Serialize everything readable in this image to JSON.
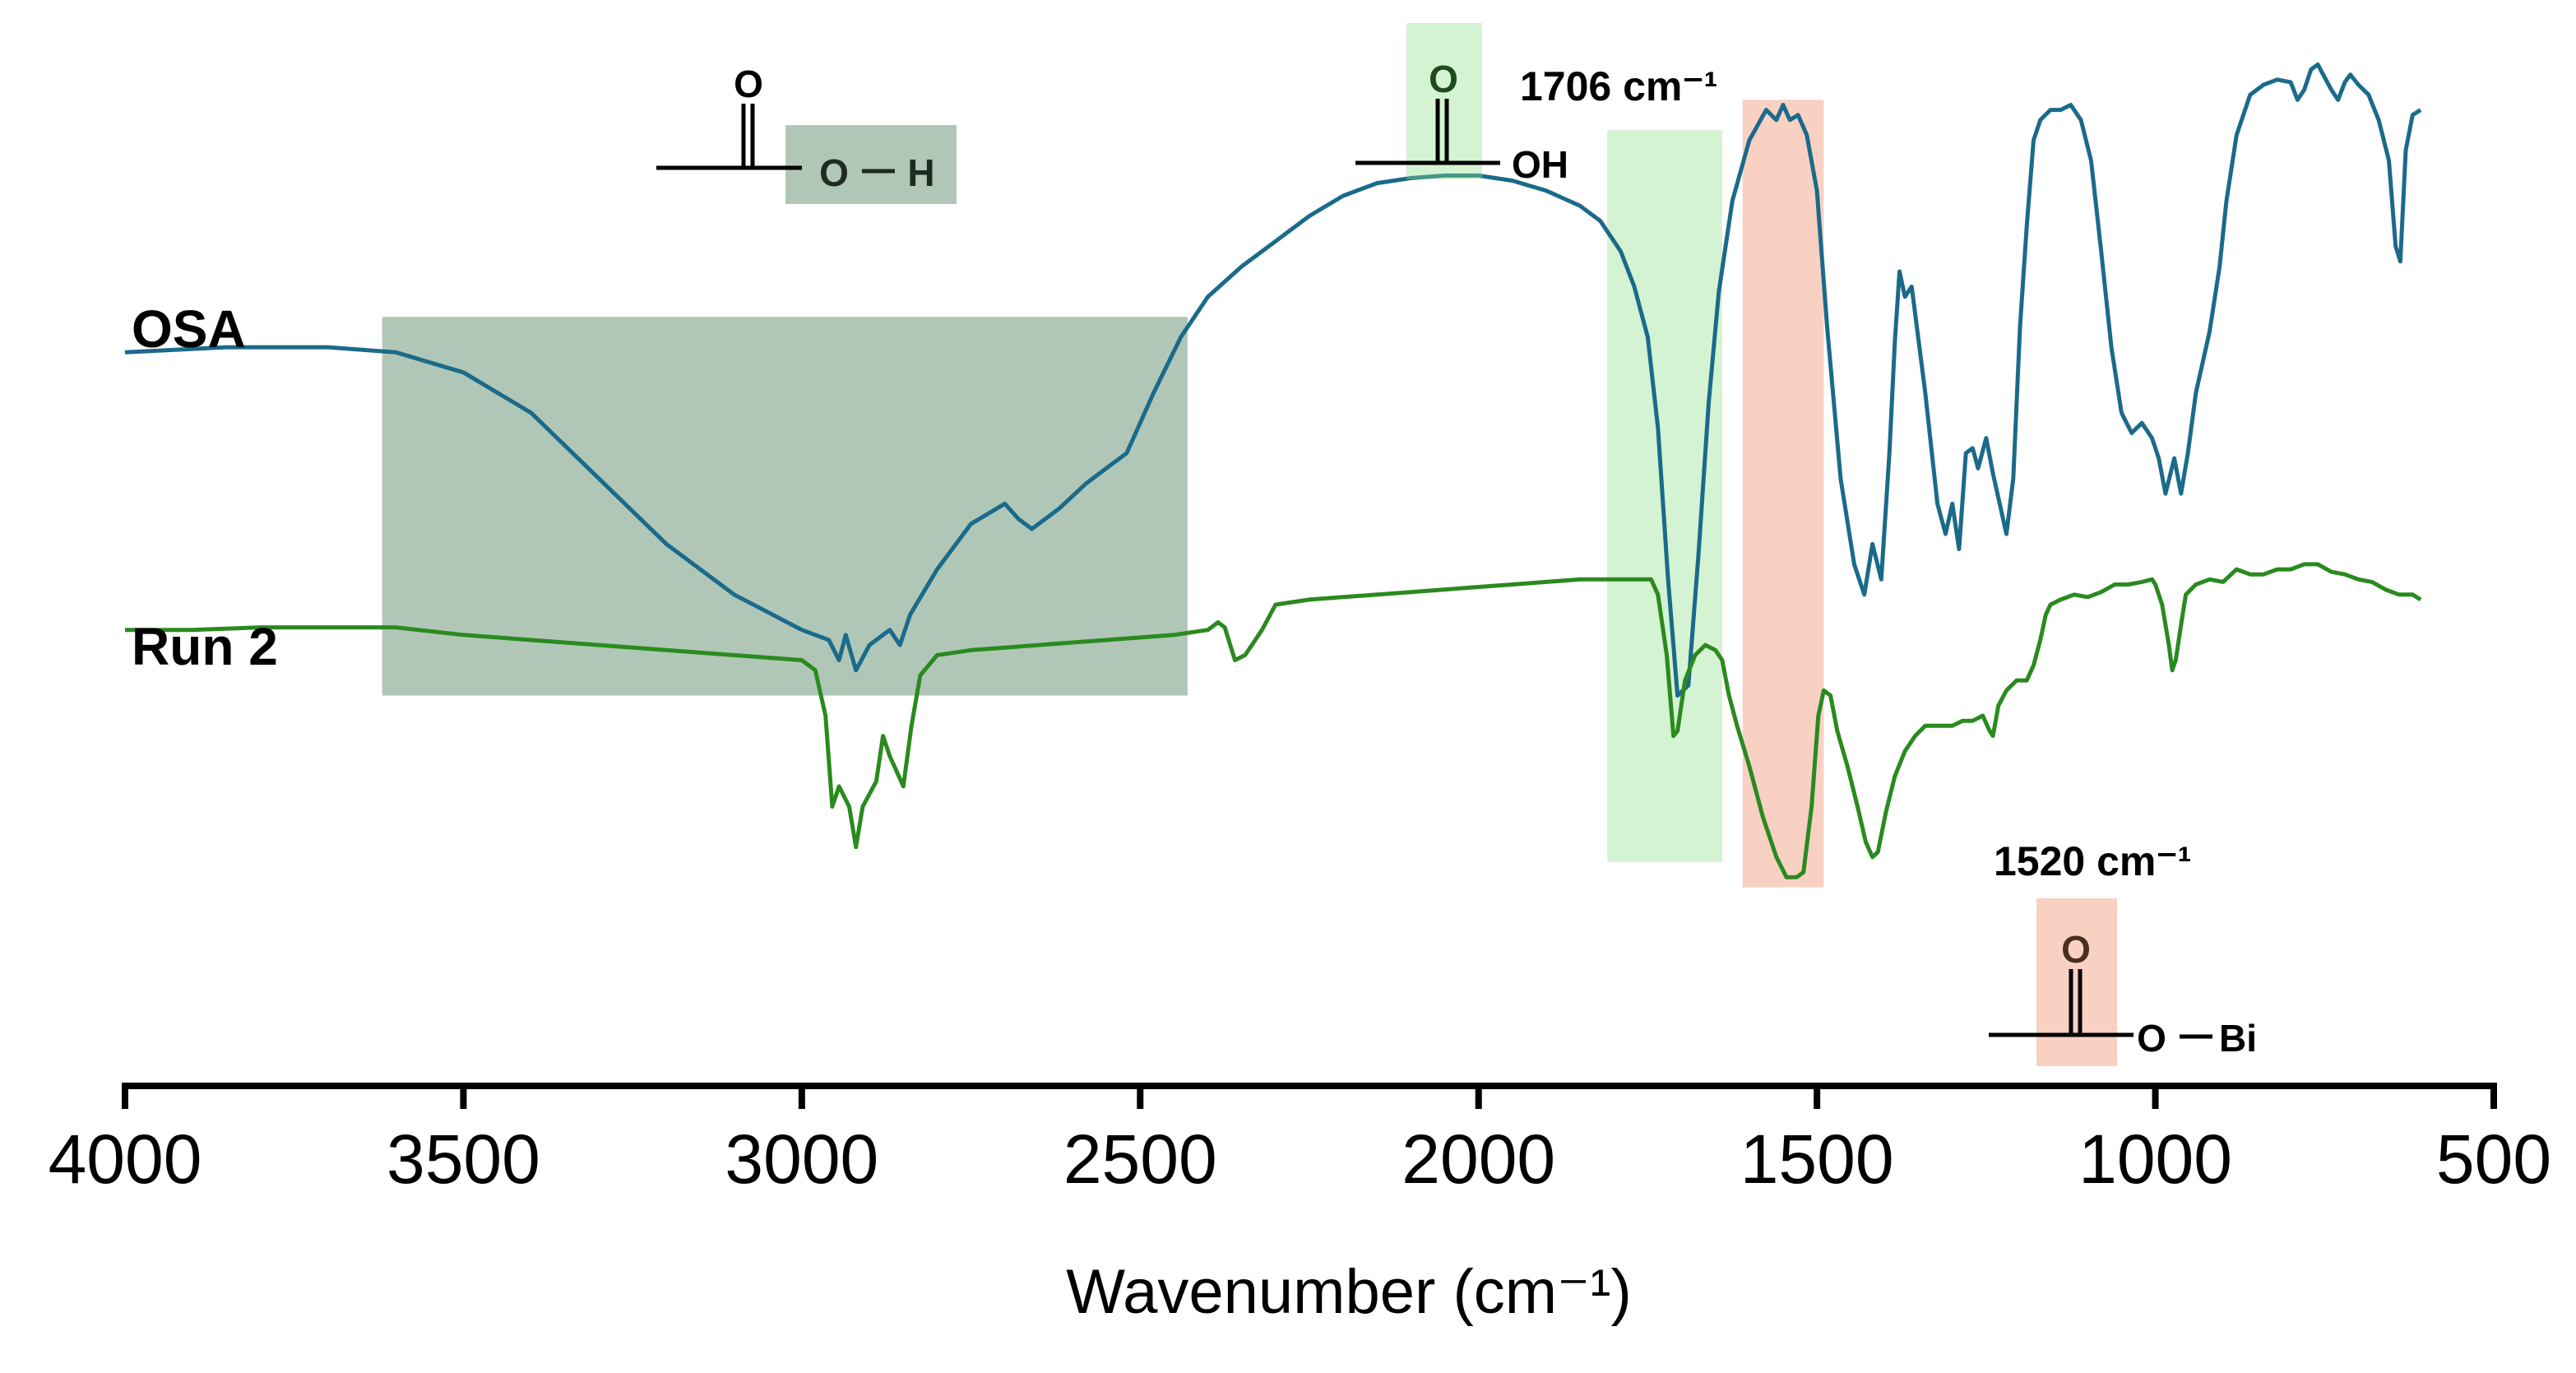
{
  "chart_data": {
    "type": "line",
    "title": "",
    "xlabel": "Wavenumber (cm⁻¹)",
    "ylabel": "",
    "xlim": [
      4000,
      500
    ],
    "x_inverted": true,
    "ylim": [
      -1.45,
      0.6
    ],
    "grid": false,
    "xticks": [
      4000,
      3500,
      3000,
      2500,
      2000,
      1500,
      1000,
      500
    ],
    "xtick_labels": [
      "4000",
      "3500",
      "3000",
      "2500",
      "2000",
      "1500",
      "1000",
      "500"
    ],
    "series": [
      {
        "name": "OSA",
        "label": "OSA",
        "color": "#1b6a8a",
        "points": [
          [
            4000,
            0
          ],
          [
            3850,
            0.01
          ],
          [
            3700,
            0.01
          ],
          [
            3600,
            0
          ],
          [
            3500,
            -0.04
          ],
          [
            3400,
            -0.12
          ],
          [
            3300,
            -0.25
          ],
          [
            3200,
            -0.38
          ],
          [
            3100,
            -0.48
          ],
          [
            3000,
            -0.55
          ],
          [
            2960,
            -0.57
          ],
          [
            2945,
            -0.61
          ],
          [
            2935,
            -0.56
          ],
          [
            2920,
            -0.63
          ],
          [
            2900,
            -0.58
          ],
          [
            2870,
            -0.55
          ],
          [
            2855,
            -0.58
          ],
          [
            2840,
            -0.52
          ],
          [
            2800,
            -0.43
          ],
          [
            2750,
            -0.34
          ],
          [
            2700,
            -0.3
          ],
          [
            2680,
            -0.33
          ],
          [
            2660,
            -0.35
          ],
          [
            2620,
            -0.31
          ],
          [
            2580,
            -0.26
          ],
          [
            2550,
            -0.23
          ],
          [
            2520,
            -0.2
          ],
          [
            2480,
            -0.08
          ],
          [
            2440,
            0.03
          ],
          [
            2400,
            0.11
          ],
          [
            2350,
            0.17
          ],
          [
            2300,
            0.22
          ],
          [
            2250,
            0.27
          ],
          [
            2200,
            0.31
          ],
          [
            2150,
            0.335
          ],
          [
            2100,
            0.345
          ],
          [
            2050,
            0.35
          ],
          [
            2000,
            0.35
          ],
          [
            1950,
            0.34
          ],
          [
            1900,
            0.32
          ],
          [
            1850,
            0.29
          ],
          [
            1820,
            0.26
          ],
          [
            1790,
            0.2
          ],
          [
            1770,
            0.13
          ],
          [
            1750,
            0.03
          ],
          [
            1735,
            -0.15
          ],
          [
            1720,
            -0.45
          ],
          [
            1706,
            -0.68
          ],
          [
            1690,
            -0.66
          ],
          [
            1675,
            -0.4
          ],
          [
            1660,
            -0.1
          ],
          [
            1645,
            0.12
          ],
          [
            1625,
            0.3
          ],
          [
            1600,
            0.42
          ],
          [
            1575,
            0.48
          ],
          [
            1560,
            0.46
          ],
          [
            1550,
            0.49
          ],
          [
            1540,
            0.46
          ],
          [
            1528,
            0.47
          ],
          [
            1515,
            0.43
          ],
          [
            1500,
            0.32
          ],
          [
            1485,
            0.05
          ],
          [
            1465,
            -0.25
          ],
          [
            1445,
            -0.42
          ],
          [
            1430,
            -0.48
          ],
          [
            1418,
            -0.38
          ],
          [
            1405,
            -0.45
          ],
          [
            1393,
            -0.2
          ],
          [
            1385,
            0.02
          ],
          [
            1378,
            0.16
          ],
          [
            1370,
            0.11
          ],
          [
            1360,
            0.13
          ],
          [
            1340,
            -0.08
          ],
          [
            1322,
            -0.3
          ],
          [
            1310,
            -0.36
          ],
          [
            1300,
            -0.3
          ],
          [
            1290,
            -0.39
          ],
          [
            1280,
            -0.2
          ],
          [
            1270,
            -0.19
          ],
          [
            1262,
            -0.23
          ],
          [
            1250,
            -0.17
          ],
          [
            1240,
            -0.24
          ],
          [
            1230,
            -0.3
          ],
          [
            1220,
            -0.36
          ],
          [
            1210,
            -0.25
          ],
          [
            1200,
            0.05
          ],
          [
            1190,
            0.25
          ],
          [
            1180,
            0.42
          ],
          [
            1170,
            0.46
          ],
          [
            1155,
            0.48
          ],
          [
            1140,
            0.48
          ],
          [
            1125,
            0.49
          ],
          [
            1110,
            0.46
          ],
          [
            1095,
            0.38
          ],
          [
            1080,
            0.2
          ],
          [
            1065,
            0.01
          ],
          [
            1050,
            -0.12
          ],
          [
            1035,
            -0.16
          ],
          [
            1020,
            -0.14
          ],
          [
            1005,
            -0.17
          ],
          [
            995,
            -0.21
          ],
          [
            985,
            -0.28
          ],
          [
            972,
            -0.21
          ],
          [
            962,
            -0.28
          ],
          [
            952,
            -0.2
          ],
          [
            940,
            -0.08
          ],
          [
            920,
            0.04
          ],
          [
            905,
            0.17
          ],
          [
            895,
            0.3
          ],
          [
            880,
            0.43
          ],
          [
            860,
            0.51
          ],
          [
            840,
            0.53
          ],
          [
            820,
            0.54
          ],
          [
            800,
            0.535
          ],
          [
            790,
            0.5
          ],
          [
            780,
            0.52
          ],
          [
            770,
            0.56
          ],
          [
            760,
            0.57
          ],
          [
            750,
            0.545
          ],
          [
            740,
            0.52
          ],
          [
            730,
            0.5
          ],
          [
            720,
            0.535
          ],
          [
            712,
            0.55
          ],
          [
            700,
            0.53
          ],
          [
            685,
            0.51
          ],
          [
            670,
            0.46
          ],
          [
            655,
            0.38
          ],
          [
            645,
            0.21
          ],
          [
            638,
            0.18
          ],
          [
            630,
            0.4
          ],
          [
            620,
            0.47
          ],
          [
            608,
            0.48
          ]
        ]
      },
      {
        "name": "Run 2",
        "label": "Run 2",
        "color": "#2a8a1f",
        "points": [
          [
            4000,
            -0.55
          ],
          [
            3900,
            -0.55
          ],
          [
            3800,
            -0.545
          ],
          [
            3700,
            -0.545
          ],
          [
            3600,
            -0.545
          ],
          [
            3500,
            -0.56
          ],
          [
            3400,
            -0.57
          ],
          [
            3300,
            -0.58
          ],
          [
            3200,
            -0.59
          ],
          [
            3100,
            -0.6
          ],
          [
            3000,
            -0.61
          ],
          [
            2980,
            -0.63
          ],
          [
            2965,
            -0.72
          ],
          [
            2955,
            -0.9
          ],
          [
            2945,
            -0.86
          ],
          [
            2930,
            -0.9
          ],
          [
            2920,
            -0.98
          ],
          [
            2910,
            -0.9
          ],
          [
            2890,
            -0.85
          ],
          [
            2880,
            -0.76
          ],
          [
            2870,
            -0.8
          ],
          [
            2860,
            -0.83
          ],
          [
            2850,
            -0.86
          ],
          [
            2838,
            -0.74
          ],
          [
            2825,
            -0.64
          ],
          [
            2800,
            -0.6
          ],
          [
            2750,
            -0.59
          ],
          [
            2700,
            -0.585
          ],
          [
            2650,
            -0.58
          ],
          [
            2600,
            -0.575
          ],
          [
            2550,
            -0.57
          ],
          [
            2500,
            -0.565
          ],
          [
            2450,
            -0.56
          ],
          [
            2400,
            -0.55
          ],
          [
            2385,
            -0.535
          ],
          [
            2375,
            -0.545
          ],
          [
            2360,
            -0.61
          ],
          [
            2345,
            -0.6
          ],
          [
            2335,
            -0.58
          ],
          [
            2320,
            -0.55
          ],
          [
            2300,
            -0.5
          ],
          [
            2250,
            -0.49
          ],
          [
            2200,
            -0.485
          ],
          [
            2150,
            -0.48
          ],
          [
            2100,
            -0.475
          ],
          [
            2050,
            -0.47
          ],
          [
            2000,
            -0.465
          ],
          [
            1950,
            -0.46
          ],
          [
            1900,
            -0.455
          ],
          [
            1850,
            -0.45
          ],
          [
            1800,
            -0.45
          ],
          [
            1760,
            -0.45
          ],
          [
            1745,
            -0.45
          ],
          [
            1735,
            -0.48
          ],
          [
            1722,
            -0.6
          ],
          [
            1712,
            -0.76
          ],
          [
            1706,
            -0.75
          ],
          [
            1695,
            -0.65
          ],
          [
            1680,
            -0.6
          ],
          [
            1665,
            -0.58
          ],
          [
            1650,
            -0.59
          ],
          [
            1640,
            -0.61
          ],
          [
            1630,
            -0.68
          ],
          [
            1618,
            -0.74
          ],
          [
            1600,
            -0.82
          ],
          [
            1580,
            -0.92
          ],
          [
            1560,
            -1.0
          ],
          [
            1545,
            -1.04
          ],
          [
            1530,
            -1.04
          ],
          [
            1520,
            -1.03
          ],
          [
            1508,
            -0.9
          ],
          [
            1498,
            -0.72
          ],
          [
            1490,
            -0.67
          ],
          [
            1480,
            -0.68
          ],
          [
            1470,
            -0.75
          ],
          [
            1455,
            -0.82
          ],
          [
            1440,
            -0.9
          ],
          [
            1428,
            -0.97
          ],
          [
            1418,
            -1.0
          ],
          [
            1410,
            -0.99
          ],
          [
            1398,
            -0.91
          ],
          [
            1385,
            -0.84
          ],
          [
            1370,
            -0.79
          ],
          [
            1355,
            -0.76
          ],
          [
            1340,
            -0.74
          ],
          [
            1320,
            -0.74
          ],
          [
            1300,
            -0.74
          ],
          [
            1285,
            -0.73
          ],
          [
            1270,
            -0.73
          ],
          [
            1255,
            -0.72
          ],
          [
            1245,
            -0.75
          ],
          [
            1240,
            -0.76
          ],
          [
            1232,
            -0.7
          ],
          [
            1220,
            -0.67
          ],
          [
            1205,
            -0.65
          ],
          [
            1190,
            -0.65
          ],
          [
            1180,
            -0.62
          ],
          [
            1170,
            -0.57
          ],
          [
            1162,
            -0.52
          ],
          [
            1155,
            -0.5
          ],
          [
            1140,
            -0.49
          ],
          [
            1120,
            -0.48
          ],
          [
            1100,
            -0.485
          ],
          [
            1080,
            -0.475
          ],
          [
            1060,
            -0.46
          ],
          [
            1040,
            -0.46
          ],
          [
            1020,
            -0.455
          ],
          [
            1005,
            -0.45
          ],
          [
            1000,
            -0.46
          ],
          [
            990,
            -0.5
          ],
          [
            980,
            -0.58
          ],
          [
            975,
            -0.63
          ],
          [
            970,
            -0.61
          ],
          [
            962,
            -0.54
          ],
          [
            955,
            -0.48
          ],
          [
            940,
            -0.46
          ],
          [
            920,
            -0.45
          ],
          [
            900,
            -0.455
          ],
          [
            880,
            -0.43
          ],
          [
            860,
            -0.44
          ],
          [
            840,
            -0.44
          ],
          [
            820,
            -0.43
          ],
          [
            800,
            -0.43
          ],
          [
            780,
            -0.42
          ],
          [
            760,
            -0.42
          ],
          [
            740,
            -0.435
          ],
          [
            720,
            -0.44
          ],
          [
            700,
            -0.45
          ],
          [
            680,
            -0.455
          ],
          [
            660,
            -0.47
          ],
          [
            640,
            -0.48
          ],
          [
            620,
            -0.48
          ],
          [
            608,
            -0.49
          ]
        ]
      }
    ],
    "highlight_regions": [
      {
        "name": "O-H stretch region",
        "x_range": [
          3620,
          2430
        ],
        "y_range": [
          -0.68,
          0.07
        ],
        "color": "#2f6b42",
        "opacity": 0.38
      },
      {
        "name": "C=O acid band",
        "x_range": [
          1810,
          1640
        ],
        "y_range": [
          -1.01,
          0.44
        ],
        "color": "#8ee08a",
        "opacity": 0.38
      },
      {
        "name": "carboxylate-Bi band",
        "x_range": [
          1610,
          1490
        ],
        "y_range": [
          -1.06,
          0.5
        ],
        "color": "#f3b39b",
        "opacity": 0.6
      }
    ],
    "annotations": [
      {
        "text": "1706 cm⁻¹",
        "x": 1706,
        "target": "OSA C=O stretch"
      },
      {
        "text": "1520 cm⁻¹",
        "x": 1520,
        "target": "Run 2 COO-Bi stretch"
      }
    ],
    "structures": [
      {
        "name": "carboxylic-OH",
        "atoms": [
          "O",
          "O",
          "H"
        ]
      },
      {
        "name": "carboxylic-acid",
        "atoms": [
          "O",
          "OH"
        ]
      },
      {
        "name": "bismuth-carboxylate",
        "atoms": [
          "O",
          "O",
          "Bi"
        ]
      }
    ]
  }
}
